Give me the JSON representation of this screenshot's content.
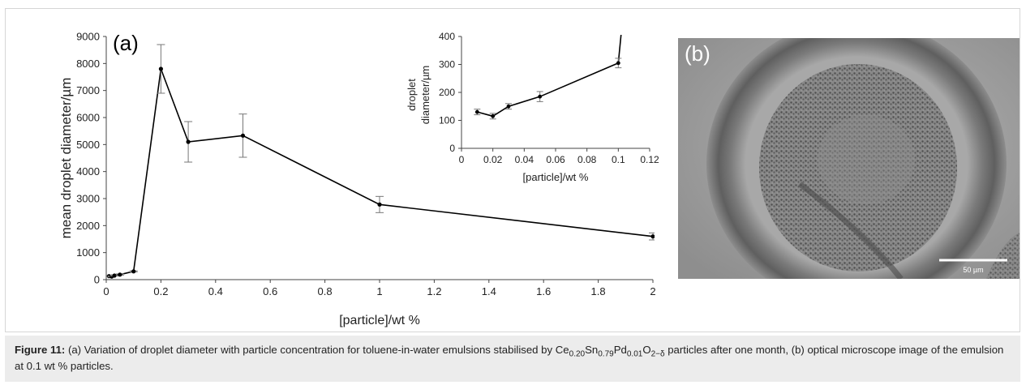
{
  "chart_data": [
    {
      "type": "line",
      "panel_label": "(a)",
      "xlabel": "[particle]/wt %",
      "ylabel": "mean droplet diameter/µm",
      "xlim": [
        0,
        2
      ],
      "ylim": [
        0,
        9000
      ],
      "x_ticks": [
        "0",
        "0.2",
        "0.4",
        "0.6",
        "0.8",
        "1",
        "1.2",
        "1.4",
        "1.6",
        "1.8",
        "2"
      ],
      "y_ticks": [
        "0",
        "1000",
        "2000",
        "3000",
        "4000",
        "5000",
        "6000",
        "7000",
        "8000",
        "9000"
      ],
      "grid": false,
      "series": [
        {
          "x": [
            0.01,
            0.02,
            0.03,
            0.05,
            0.1,
            0.2,
            0.3,
            0.5,
            1,
            2
          ],
          "y": [
            130,
            115,
            150,
            185,
            305,
            7800,
            5100,
            5330,
            2780,
            1600
          ],
          "err": [
            15,
            15,
            15,
            25,
            20,
            900,
            750,
            800,
            300,
            130
          ]
        }
      ]
    },
    {
      "type": "line",
      "inset": true,
      "xlabel": "[particle]/wt %",
      "ylabel_lines": [
        "droplet",
        "diameter/µm"
      ],
      "xlim": [
        0,
        0.12
      ],
      "ylim": [
        0,
        400
      ],
      "x_ticks": [
        "0",
        "0.02",
        "0.04",
        "0.06",
        "0.08",
        "0.1",
        "0.12"
      ],
      "y_ticks": [
        "0",
        "100",
        "200",
        "300",
        "400"
      ],
      "grid": false,
      "series": [
        {
          "x": [
            0.01,
            0.02,
            0.03,
            0.05,
            0.1
          ],
          "y": [
            130,
            115,
            150,
            185,
            305
          ],
          "err": [
            10,
            10,
            10,
            18,
            17
          ]
        }
      ]
    }
  ],
  "micrograph": {
    "label": "(b)",
    "scale_bar": "50 µm",
    "background": "#9d9d9d",
    "dark_ring": "#6a6a6a",
    "particle_tone": "#505050"
  },
  "caption": {
    "label": "Figure 11:",
    "text_1": " (a) Variation of droplet diameter with particle concentration for toluene-in-water emulsions stabilised by Ce",
    "sub_ce": "0.20",
    "text_sn": "Sn",
    "sub_sn": "0.79",
    "text_pd": "Pd",
    "sub_pd": "0.01",
    "text_o": "O",
    "sub_o": "2−δ",
    "text_2": " particles after one month, (b) optical microscope image of the emulsion at 0.1 wt % particles."
  }
}
